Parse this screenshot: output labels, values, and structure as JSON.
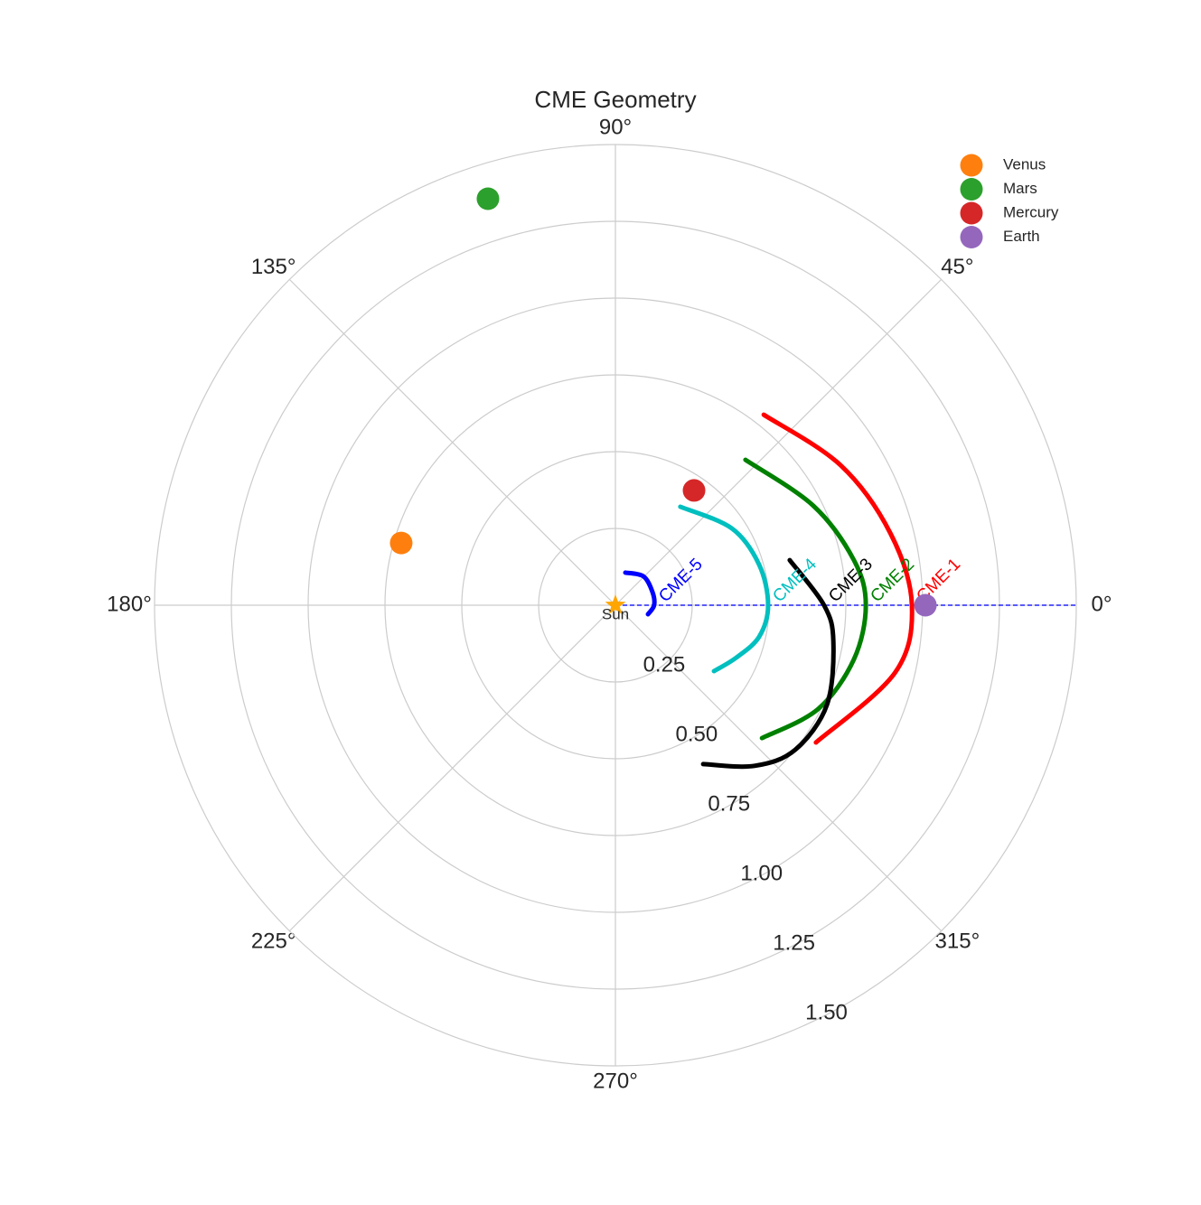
{
  "chart_data": {
    "type": "polar",
    "title": "CME Geometry",
    "rlim": [
      0,
      1.5
    ],
    "rticks": [
      {
        "value": 0.25,
        "label": "0.25"
      },
      {
        "value": 0.5,
        "label": "0.50"
      },
      {
        "value": 0.75,
        "label": "0.75"
      },
      {
        "value": 1.0,
        "label": "1.00"
      },
      {
        "value": 1.25,
        "label": "1.25"
      },
      {
        "value": 1.5,
        "label": "1.50"
      }
    ],
    "thetaticks": [
      {
        "value": 0,
        "label": "0°"
      },
      {
        "value": 45,
        "label": "45°"
      },
      {
        "value": 90,
        "label": "90°"
      },
      {
        "value": 135,
        "label": "135°"
      },
      {
        "value": 180,
        "label": "180°"
      },
      {
        "value": 225,
        "label": "225°"
      },
      {
        "value": 270,
        "label": "270°"
      },
      {
        "value": 315,
        "label": "315°"
      }
    ],
    "grid": true,
    "legend": "upper right",
    "series": [
      {
        "name": "Venus",
        "color": "#ff7f0e",
        "theta": 163.8,
        "r": 0.726
      },
      {
        "name": "Mars",
        "color": "#2ca02c",
        "theta": 107.4,
        "r": 1.387
      },
      {
        "name": "Mercury",
        "color": "#d62728",
        "theta": 55.6,
        "r": 0.453
      },
      {
        "name": "Earth",
        "color": "#9467bd",
        "theta": 0,
        "r": 1.009
      }
    ],
    "cmes": [
      {
        "name": "CME-1",
        "color": "#ff0000",
        "theta": [
          52.1,
          31.9,
          14.7,
          0,
          -13.6,
          -34.4
        ],
        "r": [
          0.786,
          0.863,
          0.925,
          0.965,
          0.936,
          0.791
        ]
      },
      {
        "name": "CME-2",
        "color": "#008000",
        "theta": [
          48.2,
          26.7,
          10.7,
          0,
          -12.8,
          -27.2,
          -42.2
        ],
        "r": [
          0.635,
          0.721,
          0.79,
          0.815,
          0.796,
          0.741,
          0.644
        ]
      },
      {
        "name": "CME-3",
        "color": "#000000",
        "theta": [
          14.5,
          0,
          -9.4,
          -25.2,
          -38.8,
          -49.1,
          -61.1
        ],
        "r": [
          0.586,
          0.679,
          0.719,
          0.761,
          0.751,
          0.692,
          0.591
        ]
      },
      {
        "name": "CME-4",
        "color": "#00bfbf",
        "theta": [
          56.6,
          33.4,
          15.8,
          0,
          -12.4,
          -23.4,
          -33.8
        ],
        "r": [
          0.384,
          0.454,
          0.486,
          0.497,
          0.479,
          0.429,
          0.386
        ]
      },
      {
        "name": "CME-5",
        "color": "#0000ff",
        "theta": [
          73.0,
          45.9,
          20.1,
          0,
          -15.5
        ],
        "r": [
          0.111,
          0.131,
          0.128,
          0.126,
          0.11
        ]
      }
    ],
    "sun": {
      "label": "Sun",
      "color": "#ffa500",
      "theta": 0,
      "r": 0
    },
    "sun_earth_line": {
      "color": "#0000ff",
      "theta": 0
    }
  }
}
